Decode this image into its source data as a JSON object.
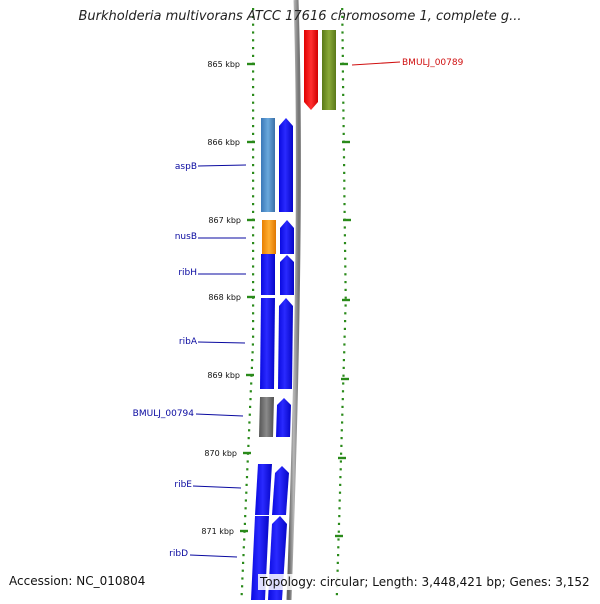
{
  "title": "Burkholderia multivorans ATCC 17616 chromosome 1, complete g...",
  "accession": "Accession: NC_010804",
  "topology": "Topology: circular; Length: 3,448,421 bp; Genes: 3,152",
  "scale_labels": [
    "865 kbp",
    "866 kbp",
    "867 kbp",
    "868 kbp",
    "869 kbp",
    "870 kbp",
    "871 kbp"
  ],
  "colors": {
    "tick_green": "#2a8a1a",
    "backbone_gray": "#8c8c8c",
    "label_blue": "#0a0aa0",
    "label_red": "#d01010",
    "gene_blue": "#0a0af0",
    "gene_steelblue": "#4a88c0",
    "gene_orange": "#f5900a",
    "gene_gray": "#6a6a6a",
    "gene_red": "#f01010",
    "gene_olive": "#6a8a20"
  },
  "genes": [
    {
      "label": "BMULJ_00789",
      "color": "red"
    },
    {
      "label": "aspB",
      "color": "blue"
    },
    {
      "label": "nusB",
      "color": "blue"
    },
    {
      "label": "ribH",
      "color": "blue"
    },
    {
      "label": "ribA",
      "color": "blue"
    },
    {
      "label": "BMULJ_00794",
      "color": "blue"
    },
    {
      "label": "ribE",
      "color": "blue"
    },
    {
      "label": "ribD",
      "color": "blue"
    }
  ]
}
